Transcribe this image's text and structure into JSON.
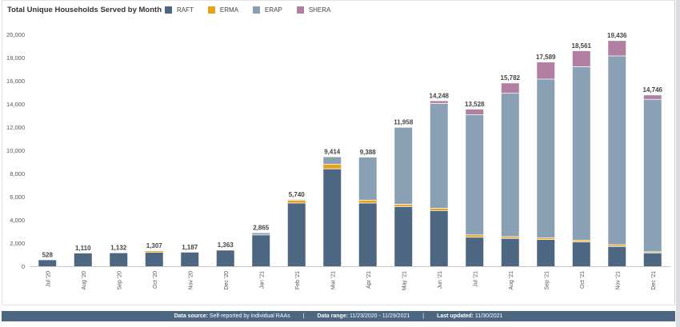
{
  "chart_data": {
    "type": "bar",
    "stacked": true,
    "title": "Total Unique Households Served by Month",
    "categories": [
      "Jul '20",
      "Aug '20",
      "Sep '20",
      "Oct '20",
      "Nov '20",
      "Dec '20",
      "Jan '21",
      "Feb '21",
      "Mar '21",
      "Apr '21",
      "May '21",
      "Jun '21",
      "Jul '21",
      "Aug '21",
      "Sep '21",
      "Oct '21",
      "Nov '21",
      "Dec '21"
    ],
    "totals": [
      528,
      1110,
      1132,
      1307,
      1187,
      1363,
      2865,
      5740,
      9414,
      9388,
      11958,
      14248,
      13528,
      15782,
      17589,
      18561,
      19436,
      14746
    ],
    "total_labels": [
      "528",
      "1,110",
      "1,132",
      "1,307",
      "1,187",
      "1,363",
      "2,865",
      "5,740",
      "9,414",
      "9,388",
      "11,958",
      "14,248",
      "13,528",
      "15,782",
      "17,589",
      "18,561",
      "19,436",
      "14,746"
    ],
    "series": [
      {
        "name": "RAFT",
        "color": "#4d6782",
        "values": [
          528,
          1110,
          1132,
          1200,
          1187,
          1363,
          2700,
          5450,
          8400,
          5450,
          5150,
          4800,
          2500,
          2400,
          2300,
          2100,
          1700,
          1150
        ]
      },
      {
        "name": "ERMA",
        "color": "#e8a21a",
        "values": [
          0,
          0,
          0,
          107,
          0,
          0,
          0,
          250,
          400,
          250,
          200,
          200,
          200,
          150,
          150,
          150,
          150,
          100
        ]
      },
      {
        "name": "ERAP",
        "color": "#8aa0b4",
        "values": [
          0,
          0,
          0,
          0,
          0,
          0,
          165,
          40,
          614,
          3688,
          6608,
          9048,
          10378,
          12382,
          13689,
          14961,
          16286,
          13146
        ]
      },
      {
        "name": "SHERA",
        "color": "#b07fa1",
        "values": [
          0,
          0,
          0,
          0,
          0,
          0,
          0,
          0,
          0,
          0,
          0,
          200,
          450,
          850,
          1450,
          1350,
          1300,
          350
        ]
      }
    ],
    "yticks": [
      "0",
      "2,000",
      "4,000",
      "6,000",
      "8,000",
      "10,000",
      "12,000",
      "14,000",
      "16,000",
      "18,000",
      "20,000"
    ],
    "ylim": [
      0,
      20000
    ],
    "legend": "top",
    "grid": false
  },
  "footer": {
    "source_label": "Data source:",
    "source_value": "Self-reported by individual RAAs",
    "range_label": "Data range:",
    "range_value": "11/23/2020 - 11/29/2021",
    "updated_label": "Last updated:",
    "updated_value": "11/30/2021",
    "separator": "|"
  }
}
